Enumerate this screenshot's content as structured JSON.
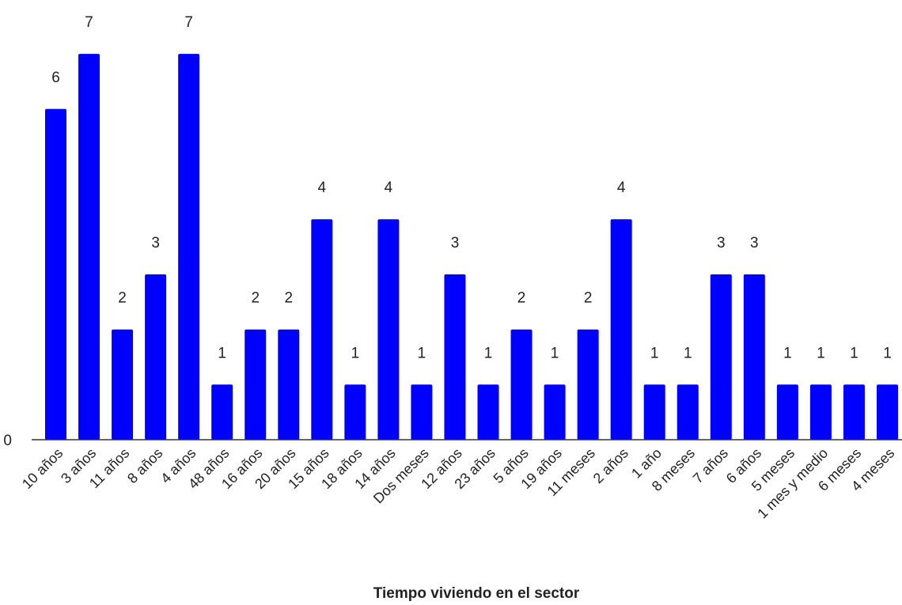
{
  "chart_data": {
    "type": "bar",
    "title": "",
    "xlabel": "Tiempo viviendo en el sector",
    "ylabel": "",
    "ylim": [
      0,
      7
    ],
    "y_ticks": [
      0
    ],
    "y_tick_labels": [
      "0"
    ],
    "grid": false,
    "legend": "none",
    "bar_color": "#0000ff",
    "categories": [
      "10 años",
      "3 años",
      "11 años",
      "8 años",
      "4 años",
      "48 años",
      "16 años",
      "20 años",
      "15 años",
      "18 años",
      "14 años",
      "Dos meses",
      "12 años",
      "23 años",
      "5 años",
      "19 años",
      "11 meses",
      "2 años",
      "1 año",
      "8 meses",
      "7 años",
      "6 años",
      "5 meses",
      "1 mes y medio",
      "6 meses",
      "4 meses"
    ],
    "values": [
      6,
      7,
      2,
      3,
      7,
      1,
      2,
      2,
      4,
      1,
      4,
      1,
      3,
      1,
      2,
      1,
      2,
      4,
      1,
      1,
      3,
      3,
      1,
      1,
      1,
      1
    ],
    "data_labels": true
  }
}
